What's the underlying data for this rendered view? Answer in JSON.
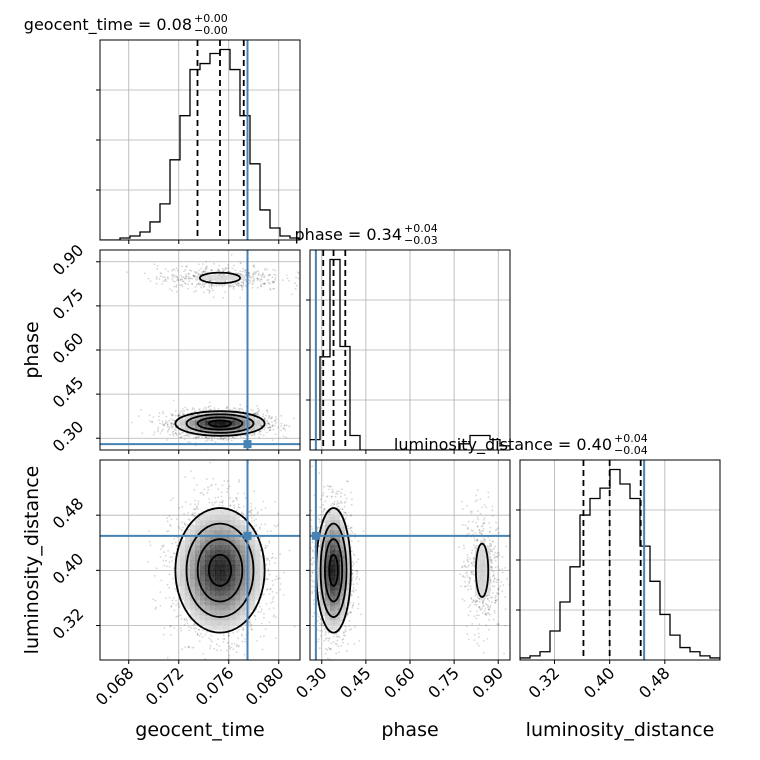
{
  "chart_data": {
    "type": "corner",
    "parameters": [
      "geocent_time",
      "phase",
      "luminosity_distance"
    ],
    "truths": {
      "geocent_time": 0.0775,
      "phase": 0.28,
      "luminosity_distance": 0.45
    },
    "axes_ranges": {
      "geocent_time": [
        0.0657,
        0.0817
      ],
      "phase": [
        0.26,
        0.94
      ],
      "luminosity_distance": [
        0.27,
        0.56
      ]
    },
    "tick_labels": {
      "geocent_time": [
        "0.068",
        "0.072",
        "0.076",
        "0.080"
      ],
      "phase": [
        "0.30",
        "0.45",
        "0.60",
        "0.75",
        "0.90"
      ],
      "luminosity_distance": [
        "0.32",
        "0.40",
        "0.48"
      ]
    },
    "grid": true,
    "colors": {
      "truth": "#4682b4",
      "contour": "#000000",
      "grid": "#b0b0b0"
    },
    "titles": [
      {
        "param": "geocent_time",
        "name": "geocent_time",
        "eq": " = ",
        "median": "0.08",
        "plus": "+0.00",
        "minus": "−0.00"
      },
      {
        "param": "phase",
        "name": "phase",
        "eq": " = ",
        "median": "0.34",
        "plus": "+0.04",
        "minus": "−0.03"
      },
      {
        "param": "luminosity_distance",
        "name": "luminosity_distance",
        "eq": " = ",
        "median": "0.40",
        "plus": "+0.04",
        "minus": "−0.04"
      }
    ],
    "histograms": {
      "geocent_time": {
        "bin_edges": [
          0.0657,
          0.0665,
          0.0673,
          0.0681,
          0.0689,
          0.0697,
          0.0705,
          0.0713,
          0.0721,
          0.0729,
          0.0737,
          0.0745,
          0.0753,
          0.0761,
          0.0769,
          0.0777,
          0.0785,
          0.0793,
          0.0801,
          0.0809,
          0.0817
        ],
        "counts": [
          0,
          0,
          1,
          2,
          4,
          9,
          18,
          40,
          62,
          85,
          88,
          93,
          95,
          85,
          62,
          38,
          15,
          6,
          2,
          1
        ],
        "quantiles": [
          0.0735,
          0.0753,
          0.0772
        ]
      },
      "phase": {
        "bin_edges": [
          0.26,
          0.294,
          0.328,
          0.362,
          0.396,
          0.43,
          0.464,
          0.498,
          0.532,
          0.566,
          0.6,
          0.634,
          0.668,
          0.702,
          0.736,
          0.77,
          0.804,
          0.838,
          0.872,
          0.906,
          0.94
        ],
        "counts": [
          5,
          45,
          92,
          50,
          7,
          0,
          0,
          0,
          0,
          0,
          0,
          0,
          0,
          0,
          0,
          3,
          7,
          7,
          5,
          2
        ],
        "quantiles": [
          0.305,
          0.34,
          0.38
        ]
      },
      "luminosity_distance": {
        "bin_edges": [
          0.27,
          0.2845,
          0.299,
          0.3135,
          0.328,
          0.3425,
          0.357,
          0.3715,
          0.386,
          0.4005,
          0.415,
          0.4295,
          0.444,
          0.4585,
          0.473,
          0.4875,
          0.502,
          0.5165,
          0.531,
          0.5455,
          0.56
        ],
        "counts": [
          1,
          2,
          4,
          14,
          28,
          45,
          70,
          78,
          83,
          92,
          85,
          78,
          55,
          38,
          22,
          12,
          6,
          4,
          2,
          1
        ],
        "quantiles": [
          0.362,
          0.4,
          0.445
        ]
      }
    },
    "density_blobs": {
      "phase|geocent_time": [
        {
          "mx": 0.0753,
          "my": 0.35,
          "sx": 0.0017,
          "sy": 0.02,
          "weight": 0.82
        },
        {
          "mx": 0.0753,
          "my": 0.845,
          "sx": 0.0023,
          "sy": 0.02,
          "weight": 0.18
        }
      ],
      "luminosity_distance|geocent_time": [
        {
          "mx": 0.0753,
          "my": 0.4,
          "sx": 0.0017,
          "sy": 0.043,
          "weight": 1.0
        }
      ],
      "luminosity_distance|phase": [
        {
          "mx": 0.34,
          "my": 0.4,
          "sx": 0.028,
          "sy": 0.043,
          "weight": 0.82
        },
        {
          "mx": 0.845,
          "my": 0.4,
          "sx": 0.03,
          "sy": 0.043,
          "weight": 0.18
        }
      ]
    }
  }
}
